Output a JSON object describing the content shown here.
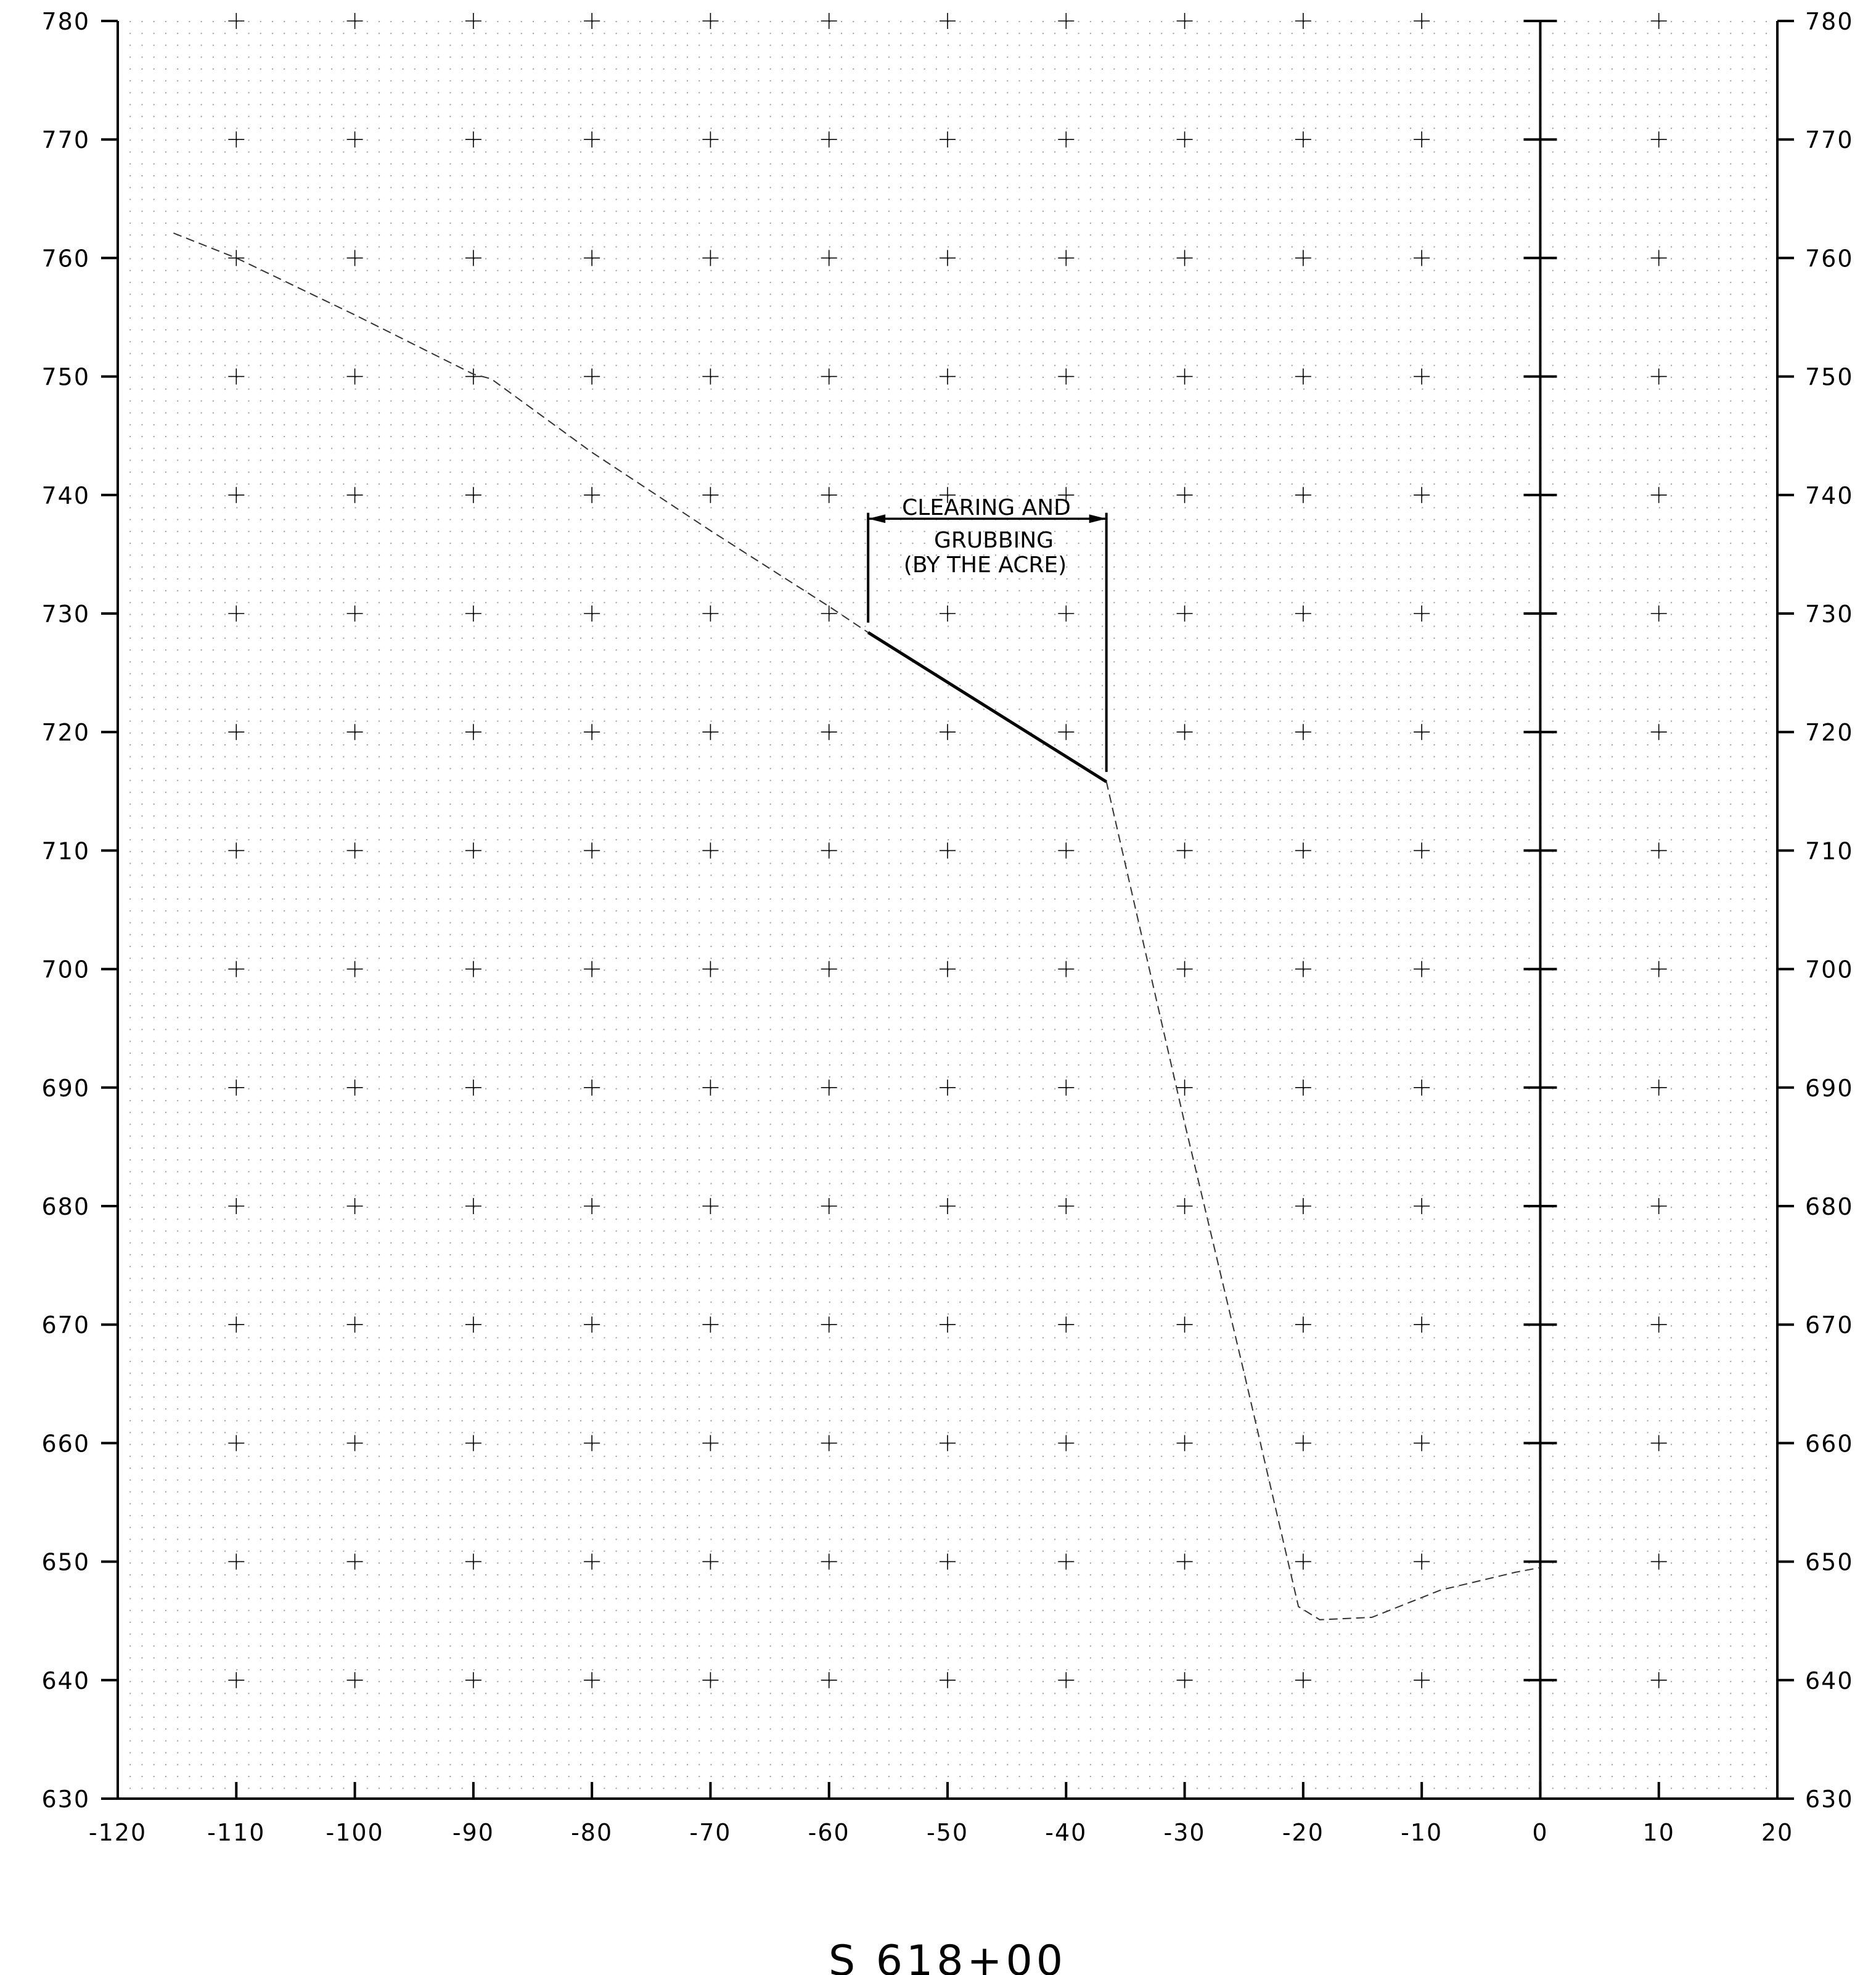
{
  "chart_data": {
    "type": "cross-section",
    "title": "",
    "xlabel": "",
    "ylabel": "",
    "xlim": [
      -120,
      20
    ],
    "ylim": [
      630,
      780
    ],
    "x_ticks": [
      -120,
      -110,
      -100,
      -90,
      -80,
      -70,
      -60,
      -50,
      -40,
      -30,
      -20,
      -10,
      0,
      10,
      20
    ],
    "x_tick_labels": [
      "-120",
      "-110",
      "-100",
      "-90",
      "-80",
      "-70",
      "-60",
      "-50",
      "-40",
      "-30",
      "-20",
      "-10",
      "0",
      "10",
      "20"
    ],
    "y_ticks": [
      630,
      640,
      650,
      660,
      670,
      680,
      690,
      700,
      710,
      720,
      730,
      740,
      750,
      760,
      770,
      780
    ],
    "y_tick_labels": [
      "630",
      "640",
      "650",
      "660",
      "670",
      "680",
      "690",
      "700",
      "710",
      "720",
      "730",
      "740",
      "750",
      "760",
      "770",
      "780"
    ],
    "centerline_x": 0,
    "grid": true,
    "existing_ground": {
      "style": "dashed",
      "points": [
        [
          -115.3,
          762.1
        ],
        [
          -110,
          760.0
        ],
        [
          -100,
          755.2
        ],
        [
          -90,
          750.2
        ],
        [
          -88.5,
          749.8
        ],
        [
          -80,
          743.6
        ],
        [
          -70,
          737.0
        ],
        [
          -60,
          730.6
        ],
        [
          -56.7,
          728.4
        ],
        [
          -36.6,
          715.8
        ],
        [
          -30,
          687.0
        ],
        [
          -25,
          666.0
        ],
        [
          -20.4,
          646.2
        ],
        [
          -18.6,
          645.1
        ],
        [
          -14.2,
          645.3
        ],
        [
          -8.4,
          647.6
        ],
        [
          -2.1,
          649.1
        ],
        [
          0,
          649.5
        ]
      ]
    },
    "clearing_limit": {
      "style": "solid",
      "points": [
        [
          -56.7,
          728.4
        ],
        [
          -36.6,
          715.8
        ]
      ],
      "extension_tops": [
        738.5,
        738.5
      ],
      "dimension_y": 738.0
    },
    "annotation_lines": [
      "CLEARING AND",
      "GRUBBING",
      "(BY THE ACRE)"
    ],
    "station_label": "S 618+00"
  }
}
